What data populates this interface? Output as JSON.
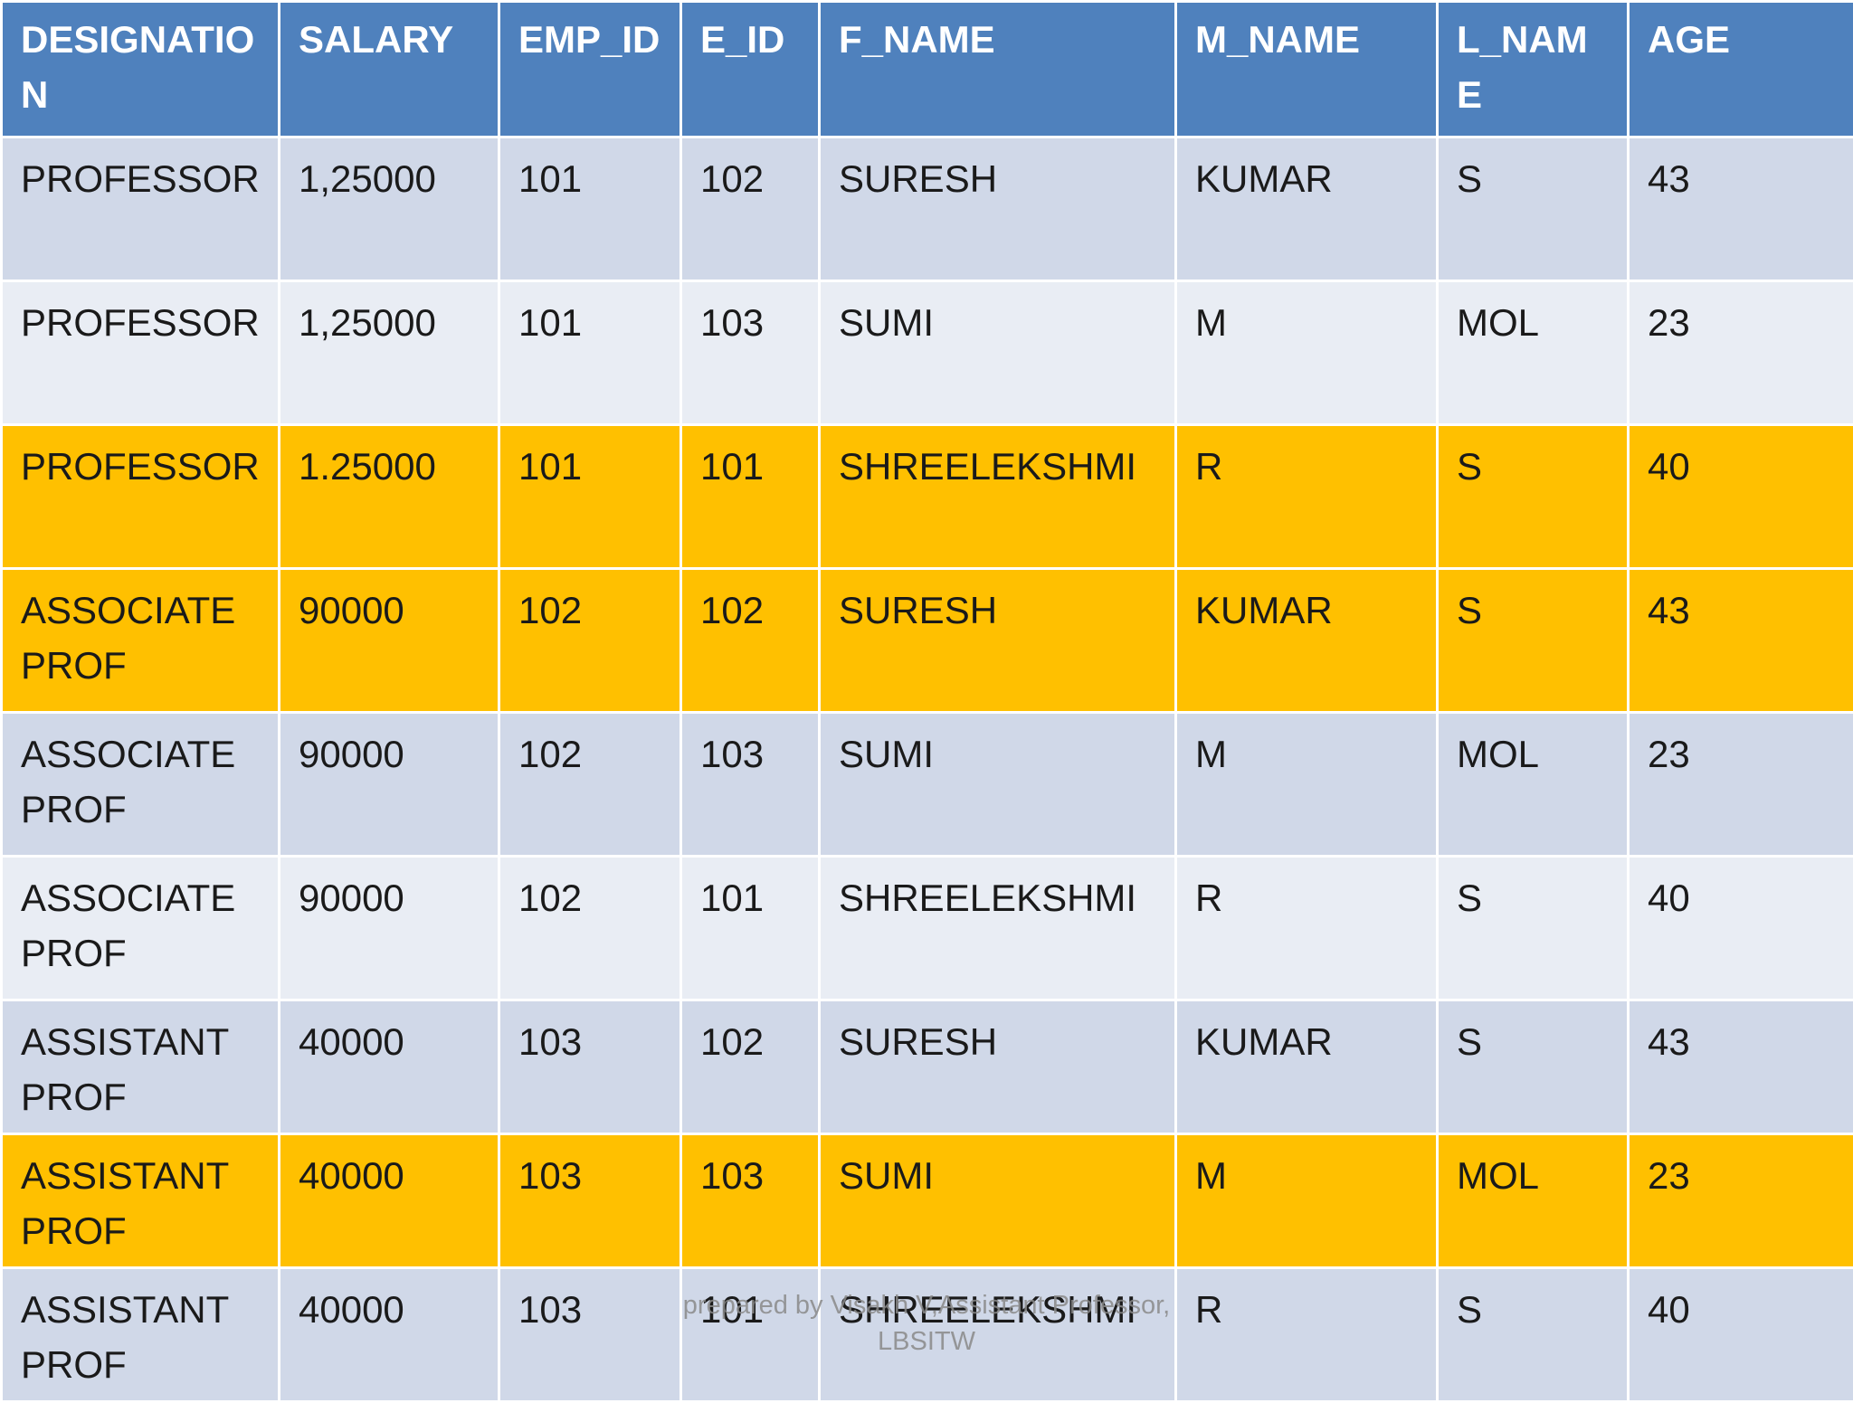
{
  "table": {
    "headers": [
      "DESIGNATION",
      "SALARY",
      "EMP_ID",
      "E_ID",
      "F_NAME",
      "M_NAME",
      "L_NAME",
      "AGE"
    ],
    "rows": [
      {
        "highlight": false,
        "cells": [
          "PROFESSOR",
          "1,25000",
          "101",
          "102",
          "SURESH",
          "KUMAR",
          "S",
          "43"
        ]
      },
      {
        "highlight": false,
        "cells": [
          "PROFESSOR",
          "1,25000",
          "101",
          "103",
          "SUMI",
          "M",
          "MOL",
          "23"
        ]
      },
      {
        "highlight": true,
        "cells": [
          "PROFESSOR",
          "1.25000",
          "101",
          "101",
          "SHREELEKSHMI",
          "R",
          "S",
          "40"
        ]
      },
      {
        "highlight": true,
        "cells": [
          "ASSOCIATE PROF",
          "90000",
          "102",
          "102",
          "SURESH",
          "KUMAR",
          "S",
          "43"
        ]
      },
      {
        "highlight": false,
        "cells": [
          "ASSOCIATE PROF",
          "90000",
          "102",
          "103",
          "SUMI",
          "M",
          "MOL",
          "23"
        ]
      },
      {
        "highlight": false,
        "cells": [
          "ASSOCIATE PROF",
          "90000",
          "102",
          "101",
          "SHREELEKSHMI",
          "R",
          "S",
          "40"
        ]
      },
      {
        "highlight": false,
        "cells": [
          "ASSISTANT PROF",
          "40000",
          "103",
          "102",
          "SURESH",
          "KUMAR",
          "S",
          "43"
        ]
      },
      {
        "highlight": true,
        "cells": [
          "ASSISTANT PROF",
          "40000",
          "103",
          "103",
          "SUMI",
          "M",
          "MOL",
          "23"
        ]
      },
      {
        "highlight": false,
        "cells": [
          "ASSISTANT PROF",
          "40000",
          "103",
          "101",
          "SHREELEKSHMI",
          "R",
          "S",
          "40"
        ]
      }
    ]
  },
  "footer": {
    "line1": "prepared by Visakh V,Assistant Professor,",
    "line2": "LBSITW"
  },
  "colors": {
    "header_bg": "#4f81bd",
    "band_dark": "#d0d8e8",
    "band_light": "#e9edf4",
    "highlight": "#ffc000"
  }
}
